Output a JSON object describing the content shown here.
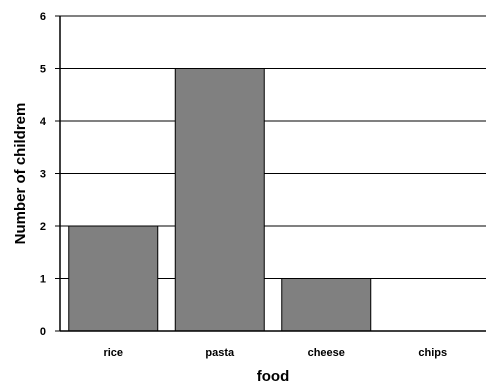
{
  "chart_data": {
    "type": "bar",
    "title": "",
    "xlabel": "food",
    "ylabel": "Number of childrem",
    "categories": [
      "rice",
      "pasta",
      "cheese",
      "chips"
    ],
    "values": [
      2,
      5,
      1,
      0
    ],
    "ylim": [
      0,
      6
    ],
    "yticks": [
      "0",
      "1",
      "2",
      "3",
      "4",
      "5",
      "6"
    ],
    "grid": "horizontal",
    "legend": "none",
    "bar_color": "#808080",
    "bar_edge_color": "#000000"
  }
}
